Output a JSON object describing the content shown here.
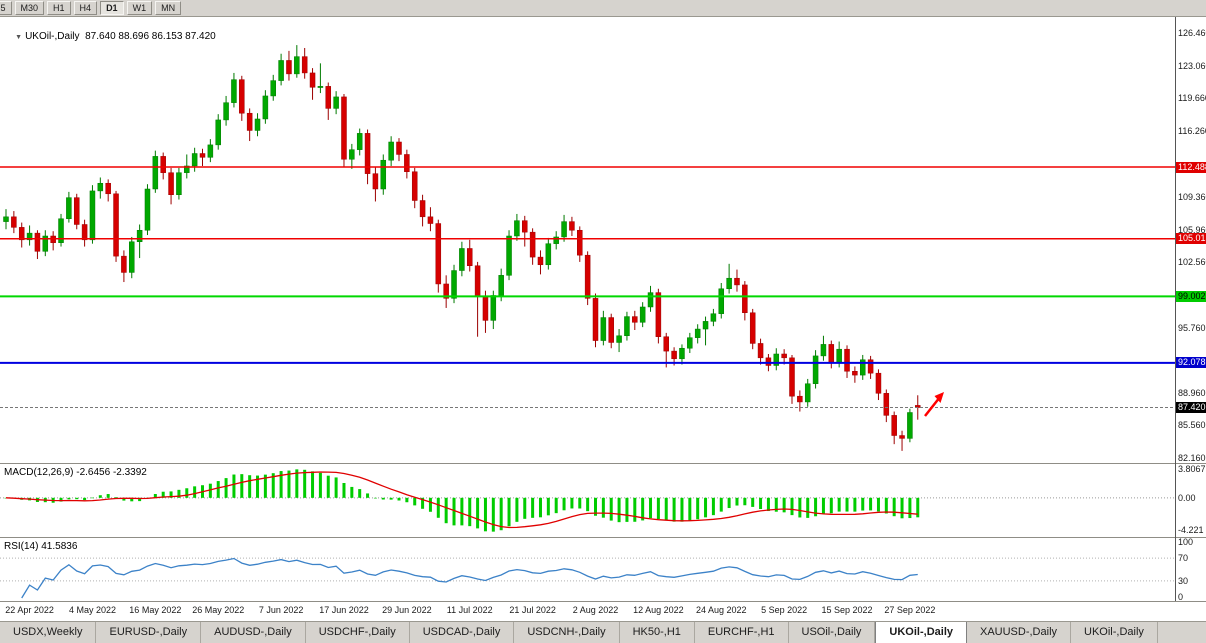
{
  "icons": {
    "object_marker": "▼"
  },
  "toolbar": {
    "buttons": [
      {
        "label": "M5",
        "partial": true,
        "active": false
      },
      {
        "label": "M30",
        "partial": false,
        "active": false
      },
      {
        "label": "H1",
        "partial": false,
        "active": false
      },
      {
        "label": "H4",
        "partial": false,
        "active": false
      },
      {
        "label": "D1",
        "partial": false,
        "active": true
      },
      {
        "label": "W1",
        "partial": false,
        "active": false
      },
      {
        "label": "MN",
        "partial": false,
        "active": false
      }
    ]
  },
  "chart": {
    "header": "UKOil-,Daily  87.640 88.696 86.153 87.420",
    "symbol": "UKOil-",
    "timeframe": "Daily",
    "ohlc_display": {
      "open": "87.640",
      "high": "88.696",
      "low": "86.153",
      "close": "87.420"
    }
  },
  "chart_data": {
    "type": "candlestick",
    "title": "UKOil-,Daily",
    "price_max": 128.13,
    "price_min": 81.74,
    "colors": {
      "bull": "#00a800",
      "bull_stroke": "#007a00",
      "bear": "#d60000",
      "bear_stroke": "#9c0000",
      "macd_hist": "#00cc00",
      "macd_signal": "#e00000",
      "rsi_line": "#3c82c8"
    },
    "y_axis_labels": [
      "126.460",
      "123.060",
      "119.660",
      "116.260",
      "109.360",
      "105.960",
      "102.560",
      "95.760",
      "88.960",
      "85.560",
      "82.160"
    ],
    "x_labels": [
      {
        "i": 3,
        "t": "22 Apr 2022"
      },
      {
        "i": 11,
        "t": "4 May 2022"
      },
      {
        "i": 19,
        "t": "16 May 2022"
      },
      {
        "i": 27,
        "t": "26 May 2022"
      },
      {
        "i": 35,
        "t": "7 Jun 2022"
      },
      {
        "i": 43,
        "t": "17 Jun 2022"
      },
      {
        "i": 51,
        "t": "29 Jun 2022"
      },
      {
        "i": 59,
        "t": "11 Jul 2022"
      },
      {
        "i": 67,
        "t": "21 Jul 2022"
      },
      {
        "i": 75,
        "t": "2 Aug 2022"
      },
      {
        "i": 83,
        "t": "12 Aug 2022"
      },
      {
        "i": 91,
        "t": "24 Aug 2022"
      },
      {
        "i": 99,
        "t": "5 Sep 2022"
      },
      {
        "i": 107,
        "t": "15 Sep 2022"
      },
      {
        "i": 115,
        "t": "27 Sep 2022"
      }
    ],
    "hlines": [
      {
        "price": 112.488,
        "label": "112.488",
        "color": "#f00000",
        "width": 1.5,
        "label_bg": "#e00000",
        "label_fg": "#ffffff"
      },
      {
        "price": 105.015,
        "label": "105.015",
        "color": "#f00000",
        "width": 1.5,
        "label_bg": "#e00000",
        "label_fg": "#ffffff"
      },
      {
        "price": 99.002,
        "label": "99.002",
        "color": "#00d800",
        "width": 2,
        "label_bg": "#00cc00",
        "label_fg": "#000000"
      },
      {
        "price": 92.078,
        "label": "92.078",
        "color": "#0000e0",
        "width": 2,
        "label_bg": "#0000cc",
        "label_fg": "#ffffff"
      }
    ],
    "current_price": {
      "price": 87.42,
      "label": "87.420",
      "line_color": "#777777",
      "label_bg": "#000000",
      "label_fg": "#ffffff"
    },
    "annotations": [
      {
        "type": "arrow-up",
        "color": "#ff0000",
        "tail": [
          925,
          399
        ],
        "tip": [
          944,
          375
        ]
      }
    ],
    "indicators": {
      "macd": {
        "header": "MACD(12,26,9) -2.6456 -2.3392",
        "params": [
          12,
          26,
          9
        ],
        "values_display": [
          "-2.6456",
          "-2.3392"
        ],
        "axis_labels": [
          "3.8067",
          "0.00",
          "-4.221"
        ]
      },
      "rsi": {
        "header": "RSI(14) 41.5836",
        "period": 14,
        "value_display": "41.5836",
        "axis_labels": [
          "100",
          "70",
          "30",
          "0"
        ],
        "levels": [
          70,
          30
        ]
      }
    },
    "ohlc": [
      [
        106.8,
        108.1,
        106.0,
        107.3
      ],
      [
        107.3,
        107.9,
        105.6,
        106.2
      ],
      [
        106.2,
        106.7,
        104.1,
        104.9
      ],
      [
        104.9,
        106.4,
        104.3,
        105.6
      ],
      [
        105.6,
        105.9,
        102.9,
        103.7
      ],
      [
        103.7,
        105.9,
        103.2,
        105.3
      ],
      [
        105.3,
        105.8,
        103.8,
        104.6
      ],
      [
        104.6,
        107.6,
        104.2,
        107.1
      ],
      [
        107.1,
        109.9,
        106.7,
        109.3
      ],
      [
        109.3,
        109.7,
        106.0,
        106.5
      ],
      [
        106.5,
        107.0,
        104.2,
        104.9
      ],
      [
        104.9,
        110.6,
        104.5,
        110.0
      ],
      [
        110.0,
        111.4,
        109.2,
        110.8
      ],
      [
        110.8,
        111.2,
        108.9,
        109.7
      ],
      [
        109.7,
        110.0,
        102.6,
        103.2
      ],
      [
        103.2,
        103.8,
        100.5,
        101.5
      ],
      [
        101.5,
        105.2,
        100.9,
        104.7
      ],
      [
        104.7,
        106.5,
        103.0,
        105.9
      ],
      [
        105.9,
        110.7,
        105.4,
        110.2
      ],
      [
        110.2,
        114.2,
        109.8,
        113.6
      ],
      [
        113.6,
        114.0,
        111.2,
        111.9
      ],
      [
        111.9,
        112.4,
        108.6,
        109.6
      ],
      [
        109.6,
        112.4,
        109.1,
        111.9
      ],
      [
        111.9,
        113.8,
        111.3,
        112.6
      ],
      [
        112.6,
        114.5,
        112.0,
        113.9
      ],
      [
        113.9,
        114.4,
        112.6,
        113.5
      ],
      [
        113.5,
        115.4,
        113.0,
        114.8
      ],
      [
        114.8,
        118.0,
        114.3,
        117.4
      ],
      [
        117.4,
        119.9,
        116.8,
        119.2
      ],
      [
        119.2,
        122.3,
        118.7,
        121.6
      ],
      [
        121.6,
        122.0,
        117.3,
        118.1
      ],
      [
        118.1,
        118.6,
        115.2,
        116.3
      ],
      [
        116.3,
        118.1,
        115.7,
        117.5
      ],
      [
        117.5,
        120.5,
        117.0,
        119.9
      ],
      [
        119.9,
        122.1,
        119.4,
        121.5
      ],
      [
        121.5,
        124.3,
        121.0,
        123.6
      ],
      [
        123.6,
        124.6,
        121.5,
        122.2
      ],
      [
        122.2,
        125.2,
        121.8,
        124.0
      ],
      [
        124.0,
        124.9,
        121.7,
        122.3
      ],
      [
        122.3,
        122.8,
        119.5,
        120.8
      ],
      [
        120.8,
        123.3,
        120.2,
        120.9
      ],
      [
        120.9,
        121.3,
        117.4,
        118.6
      ],
      [
        118.6,
        120.4,
        118.0,
        119.8
      ],
      [
        119.8,
        120.1,
        112.5,
        113.3
      ],
      [
        113.3,
        114.9,
        112.3,
        114.3
      ],
      [
        114.3,
        116.5,
        113.7,
        116.0
      ],
      [
        116.0,
        116.4,
        110.7,
        111.8
      ],
      [
        111.8,
        112.5,
        108.9,
        110.2
      ],
      [
        110.2,
        113.8,
        109.6,
        113.2
      ],
      [
        113.2,
        115.7,
        112.6,
        115.1
      ],
      [
        115.1,
        115.5,
        113.1,
        113.8
      ],
      [
        113.8,
        114.3,
        111.3,
        112.0
      ],
      [
        112.0,
        112.4,
        108.2,
        109.0
      ],
      [
        109.0,
        109.6,
        106.3,
        107.3
      ],
      [
        107.3,
        108.3,
        105.8,
        106.6
      ],
      [
        106.6,
        107.0,
        99.4,
        100.3
      ],
      [
        100.3,
        101.2,
        97.8,
        98.8
      ],
      [
        98.8,
        102.3,
        98.3,
        101.7
      ],
      [
        101.7,
        104.7,
        101.1,
        104.0
      ],
      [
        104.0,
        104.9,
        101.6,
        102.2
      ],
      [
        102.2,
        102.6,
        94.8,
        99.0
      ],
      [
        99.0,
        99.6,
        95.2,
        96.5
      ],
      [
        96.5,
        99.6,
        95.6,
        99.1
      ],
      [
        99.1,
        101.9,
        98.5,
        101.2
      ],
      [
        101.2,
        105.9,
        100.7,
        105.3
      ],
      [
        105.3,
        107.6,
        104.8,
        106.9
      ],
      [
        106.9,
        107.4,
        104.2,
        105.7
      ],
      [
        105.7,
        106.1,
        102.3,
        103.1
      ],
      [
        103.1,
        103.8,
        101.3,
        102.3
      ],
      [
        102.3,
        105.1,
        101.8,
        104.5
      ],
      [
        104.5,
        105.8,
        103.9,
        105.2
      ],
      [
        105.2,
        107.5,
        104.7,
        106.8
      ],
      [
        106.8,
        107.3,
        105.3,
        105.9
      ],
      [
        105.9,
        106.3,
        102.6,
        103.3
      ],
      [
        103.3,
        103.7,
        98.1,
        98.8
      ],
      [
        98.8,
        99.3,
        93.7,
        94.4
      ],
      [
        94.4,
        97.5,
        93.9,
        96.8
      ],
      [
        96.8,
        97.2,
        93.6,
        94.2
      ],
      [
        94.2,
        95.6,
        93.2,
        94.9
      ],
      [
        94.9,
        97.4,
        94.4,
        96.9
      ],
      [
        96.9,
        97.5,
        95.5,
        96.3
      ],
      [
        96.3,
        98.4,
        95.8,
        97.9
      ],
      [
        97.9,
        100.1,
        97.4,
        99.4
      ],
      [
        99.4,
        99.8,
        94.1,
        94.8
      ],
      [
        94.8,
        95.2,
        91.6,
        93.3
      ],
      [
        93.3,
        93.7,
        91.8,
        92.5
      ],
      [
        92.5,
        94.0,
        91.9,
        93.6
      ],
      [
        93.6,
        95.2,
        93.1,
        94.7
      ],
      [
        94.7,
        96.1,
        94.1,
        95.6
      ],
      [
        95.6,
        96.9,
        93.9,
        96.4
      ],
      [
        96.4,
        97.7,
        95.9,
        97.2
      ],
      [
        97.2,
        100.4,
        96.7,
        99.8
      ],
      [
        99.8,
        102.4,
        99.3,
        100.9
      ],
      [
        100.9,
        101.8,
        99.5,
        100.2
      ],
      [
        100.2,
        100.6,
        96.5,
        97.3
      ],
      [
        97.3,
        97.7,
        93.5,
        94.1
      ],
      [
        94.1,
        94.6,
        91.9,
        92.6
      ],
      [
        92.6,
        93.0,
        91.2,
        91.8
      ],
      [
        91.8,
        93.6,
        91.3,
        93.0
      ],
      [
        93.0,
        93.5,
        91.9,
        92.6
      ],
      [
        92.6,
        92.9,
        87.8,
        88.6
      ],
      [
        88.6,
        89.2,
        87.0,
        88.0
      ],
      [
        88.0,
        90.4,
        87.5,
        89.9
      ],
      [
        89.9,
        93.4,
        89.4,
        92.8
      ],
      [
        92.8,
        94.9,
        92.3,
        94.0
      ],
      [
        94.0,
        94.4,
        91.5,
        92.1
      ],
      [
        92.1,
        94.3,
        91.6,
        93.5
      ],
      [
        93.5,
        93.9,
        90.5,
        91.2
      ],
      [
        91.2,
        91.7,
        90.0,
        90.8
      ],
      [
        90.8,
        92.9,
        90.3,
        92.4
      ],
      [
        92.4,
        92.8,
        90.4,
        91.0
      ],
      [
        91.0,
        91.4,
        88.2,
        88.9
      ],
      [
        88.9,
        89.3,
        85.9,
        86.6
      ],
      [
        86.6,
        87.0,
        83.6,
        84.5
      ],
      [
        84.5,
        85.0,
        82.9,
        84.2
      ],
      [
        84.2,
        87.3,
        83.8,
        86.9
      ],
      [
        87.64,
        88.696,
        86.153,
        87.42
      ]
    ]
  },
  "tabs": {
    "active_index": 9,
    "items": [
      "USDX,Weekly",
      "EURUSD-,Daily",
      "AUDUSD-,Daily",
      "USDCHF-,Daily",
      "USDCAD-,Daily",
      "USDCNH-,Daily",
      "HK50-,H1",
      "EURCHF-,H1",
      "USOil-,Daily",
      "UKOil-,Daily",
      "XAUUSD-,Daily",
      "UKOil-,Daily"
    ]
  }
}
